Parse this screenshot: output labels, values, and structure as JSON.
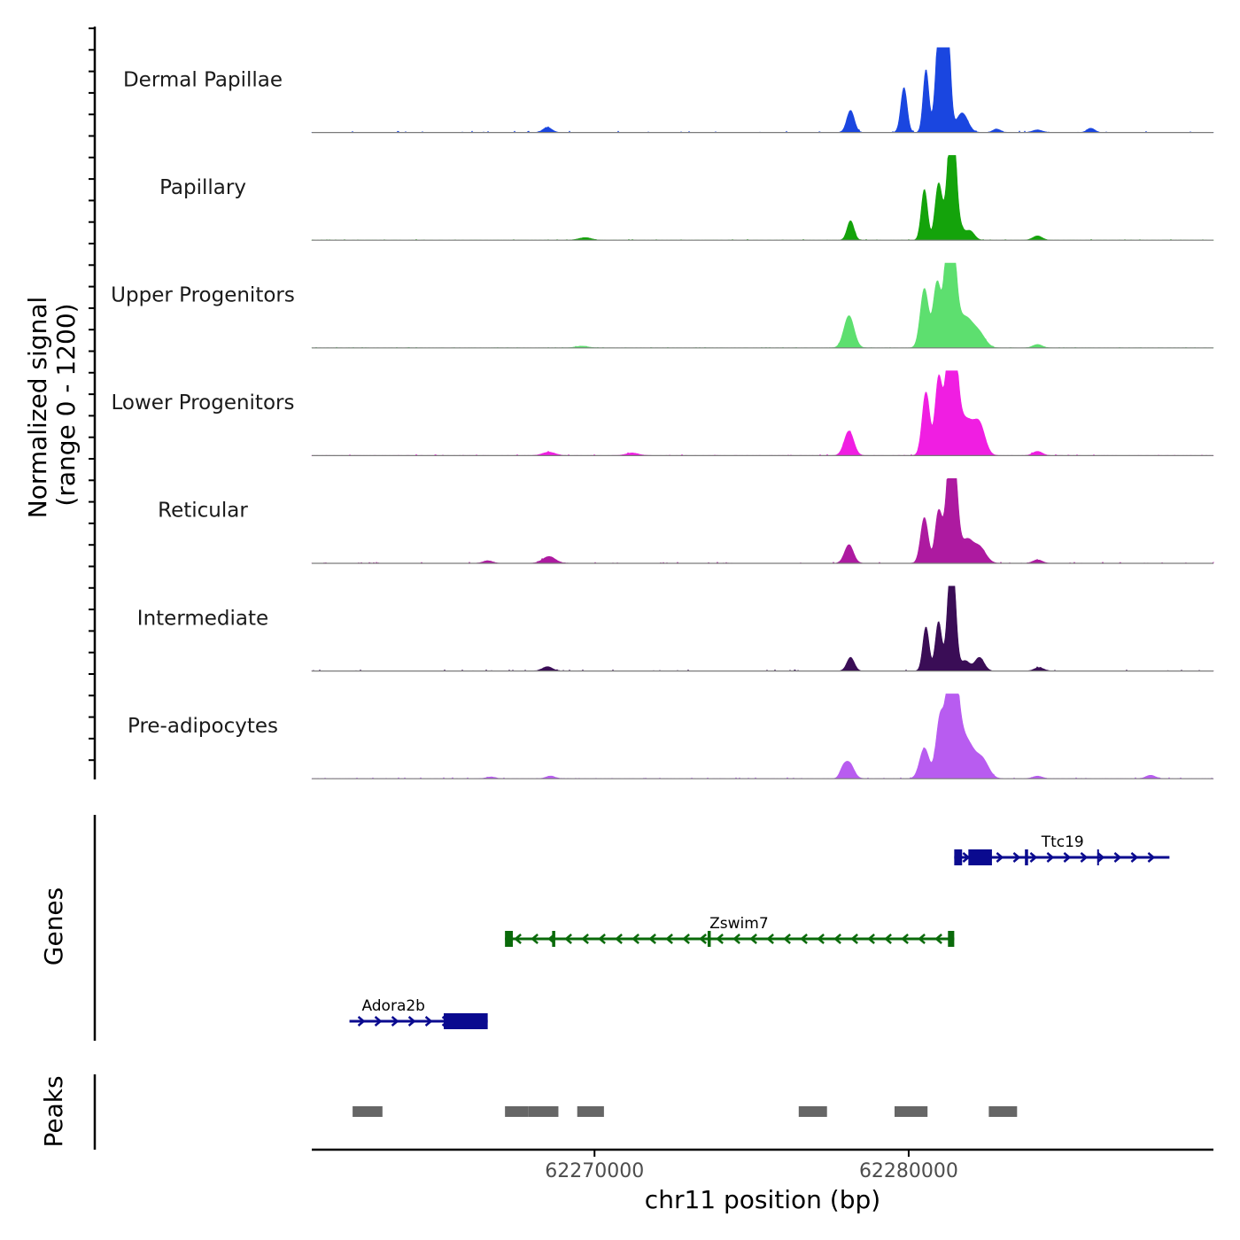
{
  "chart_data": {
    "type": "area",
    "title": "",
    "ylabel": "Normalized signal",
    "ylabel_range": "(range 0 - 1200)",
    "xlabel": "chr11 position (bp)",
    "chromosome": "chr11",
    "xlim": [
      62261000,
      62289700
    ],
    "ylim": [
      0,
      1200
    ],
    "x_ticks": [
      {
        "value": 62270000,
        "label": "62270000"
      },
      {
        "value": 62280000,
        "label": "62280000"
      }
    ],
    "tracks": [
      {
        "name": "Dermal Papillae",
        "color": "#1a46e0",
        "peaks": [
          [
            62268500,
            60,
            140
          ],
          [
            62278150,
            260,
            120
          ],
          [
            62279850,
            530,
            100
          ],
          [
            62280550,
            740,
            90
          ],
          [
            62281000,
            720,
            110
          ],
          [
            62281050,
            1000,
            150
          ],
          [
            62281250,
            900,
            90
          ],
          [
            62281700,
            230,
            180
          ],
          [
            62282800,
            40,
            120
          ],
          [
            62285800,
            50,
            120
          ],
          [
            62284100,
            30,
            150
          ]
        ],
        "noise": 18
      },
      {
        "name": "Papillary",
        "color": "#14a30b",
        "peaks": [
          [
            62269700,
            30,
            200
          ],
          [
            62278150,
            230,
            110
          ],
          [
            62280500,
            600,
            100
          ],
          [
            62280950,
            660,
            110
          ],
          [
            62281350,
            1000,
            140
          ],
          [
            62281400,
            700,
            100
          ],
          [
            62281650,
            110,
            120
          ],
          [
            62281950,
            110,
            140
          ],
          [
            62284100,
            50,
            150
          ]
        ],
        "noise": 10
      },
      {
        "name": "Upper Progenitors",
        "color": "#5ddf6f",
        "peaks": [
          [
            62269600,
            20,
            200
          ],
          [
            62278100,
            380,
            160
          ],
          [
            62280500,
            700,
            130
          ],
          [
            62280900,
            750,
            120
          ],
          [
            62281300,
            1000,
            140
          ],
          [
            62281350,
            800,
            160
          ],
          [
            62281800,
            350,
            240
          ],
          [
            62282250,
            150,
            200
          ],
          [
            62284100,
            40,
            150
          ]
        ],
        "noise": 8
      },
      {
        "name": "Lower Progenitors",
        "color": "#f01ee2",
        "peaks": [
          [
            62268550,
            40,
            200
          ],
          [
            62271200,
            30,
            200
          ],
          [
            62278100,
            290,
            150
          ],
          [
            62280550,
            750,
            120
          ],
          [
            62280950,
            880,
            110
          ],
          [
            62281350,
            1000,
            150
          ],
          [
            62281400,
            800,
            180
          ],
          [
            62281850,
            380,
            200
          ],
          [
            62282250,
            360,
            180
          ],
          [
            62284100,
            50,
            150
          ]
        ],
        "noise": 15
      },
      {
        "name": "Reticular",
        "color": "#ad1aa0",
        "peaks": [
          [
            62268550,
            80,
            200
          ],
          [
            62266600,
            30,
            150
          ],
          [
            62278100,
            220,
            140
          ],
          [
            62280500,
            540,
            120
          ],
          [
            62280950,
            600,
            110
          ],
          [
            62281350,
            1000,
            150
          ],
          [
            62281400,
            700,
            140
          ],
          [
            62281850,
            260,
            180
          ],
          [
            62282250,
            190,
            200
          ],
          [
            62284100,
            40,
            150
          ]
        ],
        "noise": 15
      },
      {
        "name": "Intermediate",
        "color": "#3a0d56",
        "peaks": [
          [
            62268500,
            50,
            160
          ],
          [
            62278150,
            160,
            120
          ],
          [
            62280550,
            520,
            100
          ],
          [
            62280950,
            580,
            100
          ],
          [
            62281350,
            1000,
            120
          ],
          [
            62281400,
            500,
            110
          ],
          [
            62281800,
            120,
            140
          ],
          [
            62282250,
            160,
            150
          ],
          [
            62284150,
            40,
            150
          ]
        ],
        "noise": 15
      },
      {
        "name": "Pre-adipocytes",
        "color": "#b85cf0",
        "peaks": [
          [
            62266700,
            20,
            150
          ],
          [
            62268600,
            30,
            150
          ],
          [
            62278100,
            190,
            150
          ],
          [
            62277900,
            80,
            100
          ],
          [
            62280500,
            360,
            150
          ],
          [
            62281000,
            700,
            130
          ],
          [
            62281350,
            1000,
            140
          ],
          [
            62281450,
            800,
            180
          ],
          [
            62281850,
            420,
            240
          ],
          [
            62282350,
            210,
            200
          ],
          [
            62287700,
            40,
            150
          ],
          [
            62284100,
            30,
            150
          ]
        ],
        "noise": 15
      }
    ],
    "genes": [
      {
        "name": "Ttc19",
        "strand": "+",
        "color": "#0a0a8f",
        "start": 62281450,
        "end": 62288300,
        "exons": [
          [
            62281450,
            62281700
          ],
          [
            62281900,
            62282650
          ],
          [
            62283700,
            62283800
          ],
          [
            62286000,
            62286050
          ]
        ],
        "label_at": 62284900
      },
      {
        "name": "Zswim7",
        "strand": "-",
        "color": "#0a6a0a",
        "start": 62267150,
        "end": 62281450,
        "exons": [
          [
            62267150,
            62267400
          ],
          [
            62268650,
            62268750
          ],
          [
            62273600,
            62273700
          ],
          [
            62281250,
            62281450
          ]
        ],
        "label_at": 62274600
      },
      {
        "name": "Adora2b",
        "strand": "+",
        "color": "#0a0a8f",
        "start": 62262200,
        "end": 62266600,
        "exons": [
          [
            62265200,
            62266600
          ]
        ],
        "label_at": 62263600
      }
    ],
    "peak_regions": [
      [
        62262300,
        62263250
      ],
      [
        62267150,
        62267900
      ],
      [
        62267900,
        62268850
      ],
      [
        62269450,
        62270300
      ],
      [
        62276500,
        62277400
      ],
      [
        62279550,
        62280600
      ],
      [
        62282550,
        62283450
      ]
    ],
    "section_labels": {
      "genes": "Genes",
      "peaks": "Peaks"
    }
  }
}
